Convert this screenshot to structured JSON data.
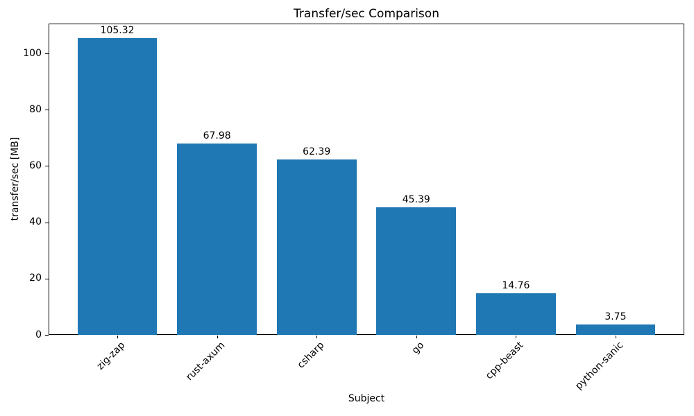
{
  "chart_data": {
    "type": "bar",
    "title": "Transfer/sec Comparison",
    "xlabel": "Subject",
    "ylabel": "transfer/sec [MB]",
    "categories": [
      "zig-zap",
      "rust-axum",
      "csharp",
      "go",
      "cpp-beast",
      "python-sanic"
    ],
    "values": [
      105.32,
      67.98,
      62.39,
      45.39,
      14.76,
      3.75
    ],
    "value_labels": [
      "105.32",
      "67.98",
      "62.39",
      "45.39",
      "14.76",
      "3.75"
    ],
    "ytick_labels": [
      "0",
      "20",
      "40",
      "60",
      "80",
      "100"
    ],
    "yticks": [
      0,
      20,
      40,
      60,
      80,
      100
    ],
    "ylim": [
      0,
      110.6
    ],
    "bar_color": "#1f77b4",
    "grid": false,
    "legend_position": "none"
  }
}
